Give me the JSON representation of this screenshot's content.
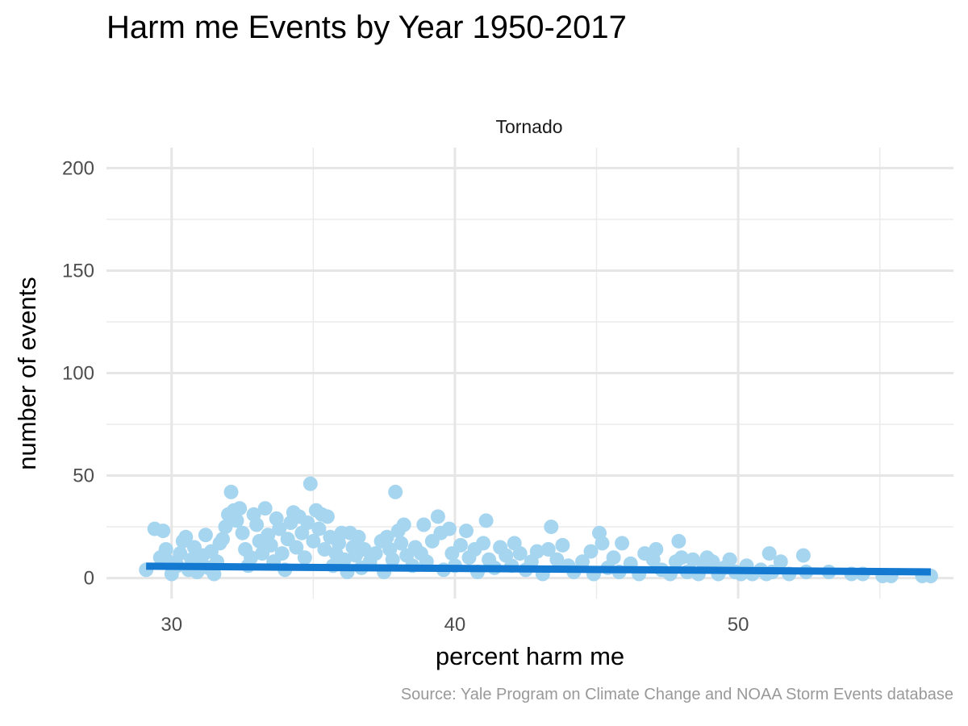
{
  "chart_data": {
    "type": "scatter",
    "title": "Harm me Events by Year 1950-2017",
    "facet": "Tornado",
    "xlabel": "percent harm me",
    "ylabel": "number of events",
    "caption": "Source: Yale Program on Climate Change and NOAA Storm Events database",
    "xlim": [
      27.7,
      57.6
    ],
    "ylim": [
      -10,
      210
    ],
    "xticks": [
      30,
      40,
      50
    ],
    "yticks": [
      0,
      50,
      100,
      150,
      200
    ],
    "grid": true,
    "point_color": "#a6d5f0",
    "line_color": "#1479d0",
    "trend_line": {
      "x": [
        29.1,
        56.8
      ],
      "y": [
        5.8,
        3.0
      ]
    },
    "points": [
      [
        29.1,
        4
      ],
      [
        29.4,
        24
      ],
      [
        29.7,
        23
      ],
      [
        29.6,
        10
      ],
      [
        29.8,
        14
      ],
      [
        29.9,
        8
      ],
      [
        30.0,
        2
      ],
      [
        30.2,
        6
      ],
      [
        30.3,
        12
      ],
      [
        30.4,
        18
      ],
      [
        30.5,
        20
      ],
      [
        30.6,
        4
      ],
      [
        30.7,
        9
      ],
      [
        30.8,
        15
      ],
      [
        30.9,
        3
      ],
      [
        31.0,
        7
      ],
      [
        31.1,
        11
      ],
      [
        31.2,
        21
      ],
      [
        31.3,
        5
      ],
      [
        31.4,
        13
      ],
      [
        31.5,
        2
      ],
      [
        31.6,
        8
      ],
      [
        31.7,
        17
      ],
      [
        31.8,
        19
      ],
      [
        31.9,
        25
      ],
      [
        32.0,
        31
      ],
      [
        32.1,
        42
      ],
      [
        32.2,
        33
      ],
      [
        32.3,
        28
      ],
      [
        32.4,
        34
      ],
      [
        32.5,
        22
      ],
      [
        32.6,
        14
      ],
      [
        32.7,
        6
      ],
      [
        32.8,
        10
      ],
      [
        32.9,
        31
      ],
      [
        33.0,
        26
      ],
      [
        33.1,
        18
      ],
      [
        33.2,
        12
      ],
      [
        33.3,
        34
      ],
      [
        33.4,
        21
      ],
      [
        33.5,
        16
      ],
      [
        33.6,
        8
      ],
      [
        33.7,
        29
      ],
      [
        33.8,
        24
      ],
      [
        33.9,
        12
      ],
      [
        34.0,
        4
      ],
      [
        34.1,
        19
      ],
      [
        34.2,
        27
      ],
      [
        34.3,
        32
      ],
      [
        34.4,
        15
      ],
      [
        34.5,
        30
      ],
      [
        34.6,
        22
      ],
      [
        34.7,
        10
      ],
      [
        34.8,
        27
      ],
      [
        34.9,
        46
      ],
      [
        35.0,
        18
      ],
      [
        35.1,
        33
      ],
      [
        35.2,
        24
      ],
      [
        35.3,
        31
      ],
      [
        35.4,
        14
      ],
      [
        35.5,
        30
      ],
      [
        35.6,
        20
      ],
      [
        35.7,
        6
      ],
      [
        35.8,
        12
      ],
      [
        35.9,
        17
      ],
      [
        36.0,
        22
      ],
      [
        36.1,
        9
      ],
      [
        36.2,
        3
      ],
      [
        36.3,
        22
      ],
      [
        36.4,
        15
      ],
      [
        36.5,
        11
      ],
      [
        36.6,
        20
      ],
      [
        36.7,
        5
      ],
      [
        36.8,
        14
      ],
      [
        37.0,
        8
      ],
      [
        37.2,
        12
      ],
      [
        37.4,
        18
      ],
      [
        37.5,
        3
      ],
      [
        37.6,
        20
      ],
      [
        37.7,
        14
      ],
      [
        37.8,
        9
      ],
      [
        37.9,
        42
      ],
      [
        38.0,
        23
      ],
      [
        38.1,
        17
      ],
      [
        38.2,
        26
      ],
      [
        38.3,
        11
      ],
      [
        38.5,
        6
      ],
      [
        38.6,
        15
      ],
      [
        38.8,
        12
      ],
      [
        38.9,
        26
      ],
      [
        39.0,
        8
      ],
      [
        39.2,
        18
      ],
      [
        39.4,
        30
      ],
      [
        39.5,
        22
      ],
      [
        39.6,
        4
      ],
      [
        39.8,
        24
      ],
      [
        39.9,
        12
      ],
      [
        40.0,
        6
      ],
      [
        40.2,
        16
      ],
      [
        40.4,
        23
      ],
      [
        40.5,
        10
      ],
      [
        40.7,
        14
      ],
      [
        40.8,
        3
      ],
      [
        41.0,
        17
      ],
      [
        41.1,
        28
      ],
      [
        41.2,
        9
      ],
      [
        41.4,
        5
      ],
      [
        41.6,
        15
      ],
      [
        41.8,
        11
      ],
      [
        42.0,
        6
      ],
      [
        42.1,
        17
      ],
      [
        42.3,
        12
      ],
      [
        42.5,
        4
      ],
      [
        42.7,
        8
      ],
      [
        42.9,
        13
      ],
      [
        43.1,
        2
      ],
      [
        43.3,
        14
      ],
      [
        43.4,
        25
      ],
      [
        43.6,
        9
      ],
      [
        43.8,
        16
      ],
      [
        44.0,
        6
      ],
      [
        44.2,
        3
      ],
      [
        44.5,
        8
      ],
      [
        44.8,
        13
      ],
      [
        44.9,
        2
      ],
      [
        45.1,
        22
      ],
      [
        45.2,
        17
      ],
      [
        45.4,
        5
      ],
      [
        45.6,
        10
      ],
      [
        45.8,
        3
      ],
      [
        45.9,
        17
      ],
      [
        46.2,
        7
      ],
      [
        46.5,
        2
      ],
      [
        46.7,
        12
      ],
      [
        47.0,
        9
      ],
      [
        47.1,
        14
      ],
      [
        47.3,
        4
      ],
      [
        47.6,
        2
      ],
      [
        47.8,
        8
      ],
      [
        47.9,
        18
      ],
      [
        48.0,
        10
      ],
      [
        48.2,
        3
      ],
      [
        48.4,
        9
      ],
      [
        48.6,
        2
      ],
      [
        48.8,
        6
      ],
      [
        48.9,
        10
      ],
      [
        49.1,
        8
      ],
      [
        49.3,
        2
      ],
      [
        49.5,
        5
      ],
      [
        49.7,
        9
      ],
      [
        49.9,
        3
      ],
      [
        50.1,
        2
      ],
      [
        50.3,
        6
      ],
      [
        50.5,
        2
      ],
      [
        50.8,
        4
      ],
      [
        51.0,
        2
      ],
      [
        51.1,
        12
      ],
      [
        51.2,
        3
      ],
      [
        51.5,
        8
      ],
      [
        51.8,
        2
      ],
      [
        52.3,
        11
      ],
      [
        52.4,
        3
      ],
      [
        53.2,
        3
      ],
      [
        54.0,
        2
      ],
      [
        54.4,
        2
      ],
      [
        55.1,
        1
      ],
      [
        55.4,
        1
      ],
      [
        56.5,
        1
      ],
      [
        56.8,
        1
      ]
    ]
  }
}
